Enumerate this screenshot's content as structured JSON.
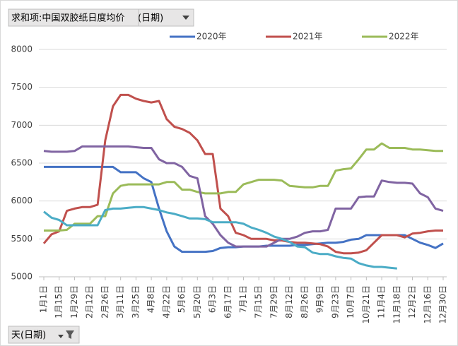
{
  "chart_data": {
    "type": "line",
    "value_field_button": "求和项:中国双胶纸日度均价",
    "legend_field_button": "年(日期)",
    "axis_field_button": "天(日期)",
    "categories": [
      "1月1日",
      null,
      "1月15日",
      null,
      "1月29日",
      null,
      "2月12日",
      null,
      "2月26日",
      null,
      "3月11日",
      null,
      "3月25日",
      null,
      "4月8日",
      null,
      "4月22日",
      null,
      "5月6日",
      null,
      "5月20日",
      null,
      "6月3日",
      null,
      "6月17日",
      null,
      "7月1日",
      null,
      "7月15日",
      null,
      "7月29日",
      null,
      "8月12日",
      null,
      "8月26日",
      null,
      "9月9日",
      null,
      "9月23日",
      null,
      "10月7日",
      null,
      "10月21日",
      null,
      "11月4日",
      null,
      "11月18日",
      null,
      "12月2日",
      null,
      "12月16日",
      null,
      "12月30日"
    ],
    "series": [
      {
        "name": "2020年",
        "color": "#4472c4",
        "values": [
          6450,
          6450,
          6450,
          6450,
          6450,
          6450,
          6450,
          6450,
          6450,
          6450,
          6380,
          6380,
          6380,
          6300,
          6250,
          5900,
          5600,
          5400,
          5330,
          5330,
          5330,
          5330,
          5340,
          5380,
          5390,
          5390,
          5400,
          5400,
          5400,
          5410,
          5410,
          5410,
          5410,
          5420,
          5420,
          5430,
          5440,
          5450,
          5450,
          5460,
          5490,
          5500,
          5550,
          5550,
          5550,
          5550,
          5550,
          5550,
          5500,
          5450,
          5420,
          5380,
          5440
        ]
      },
      {
        "name": "2021年",
        "color": "#c0504d",
        "values": [
          5440,
          5560,
          5600,
          5870,
          5900,
          5920,
          5920,
          5950,
          6800,
          7250,
          7400,
          7400,
          7350,
          7320,
          7300,
          7320,
          7080,
          6980,
          6950,
          6900,
          6800,
          6620,
          6620,
          5900,
          5800,
          5580,
          5550,
          5500,
          5500,
          5500,
          5480,
          5480,
          5460,
          5450,
          5450,
          5440,
          5430,
          5400,
          5330,
          5310,
          5310,
          5320,
          5350,
          5450,
          5550,
          5550,
          5550,
          5520,
          5570,
          5580,
          5600,
          5610,
          5610
        ]
      },
      {
        "name": "2022年",
        "color": "#9bbb59",
        "values": [
          5610,
          5610,
          5610,
          5620,
          5700,
          5700,
          5700,
          5800,
          5800,
          6100,
          6200,
          6220,
          6220,
          6220,
          6220,
          6220,
          6250,
          6250,
          6150,
          6150,
          6120,
          6100,
          6100,
          6100,
          6120,
          6120,
          6220,
          6250,
          6280,
          6280,
          6280,
          6270,
          6200,
          6190,
          6180,
          6180,
          6200,
          6200,
          6400,
          6420,
          6430,
          6550,
          6680,
          6680,
          6760,
          6700,
          6700,
          6700,
          6680,
          6680,
          6670,
          6660,
          6660
        ]
      },
      {
        "color": "#8064a2",
        "values": [
          6660,
          6650,
          6650,
          6650,
          6660,
          6720,
          6720,
          6720,
          6720,
          6720,
          6720,
          6720,
          6710,
          6700,
          6700,
          6550,
          6500,
          6500,
          6450,
          6330,
          6300,
          5800,
          5700,
          5550,
          5450,
          5400,
          5400,
          5400,
          5400,
          5400,
          5450,
          5500,
          5500,
          5530,
          5580,
          5600,
          5600,
          5620,
          5900,
          5900,
          5900,
          6050,
          6060,
          6060,
          6270,
          6250,
          6240,
          6240,
          6230,
          6100,
          6050,
          5900,
          5870
        ]
      },
      {
        "color": "#4bacc6",
        "values": [
          5860,
          5780,
          5750,
          5680,
          5680,
          5680,
          5680,
          5680,
          5880,
          5900,
          5900,
          5910,
          5920,
          5920,
          5900,
          5880,
          5850,
          5830,
          5800,
          5770,
          5770,
          5760,
          5720,
          5720,
          5720,
          5720,
          5700,
          5650,
          5620,
          5580,
          5530,
          5500,
          5460,
          5400,
          5390,
          5320,
          5300,
          5300,
          5270,
          5250,
          5240,
          5180,
          5150,
          5130,
          5130,
          5120,
          5110,
          null,
          null,
          null,
          null,
          null,
          null
        ]
      }
    ],
    "ylim": [
      5000,
      8000
    ],
    "yticks": [
      5000,
      5500,
      6000,
      6500,
      7000,
      7500,
      8000
    ],
    "grid": true
  }
}
